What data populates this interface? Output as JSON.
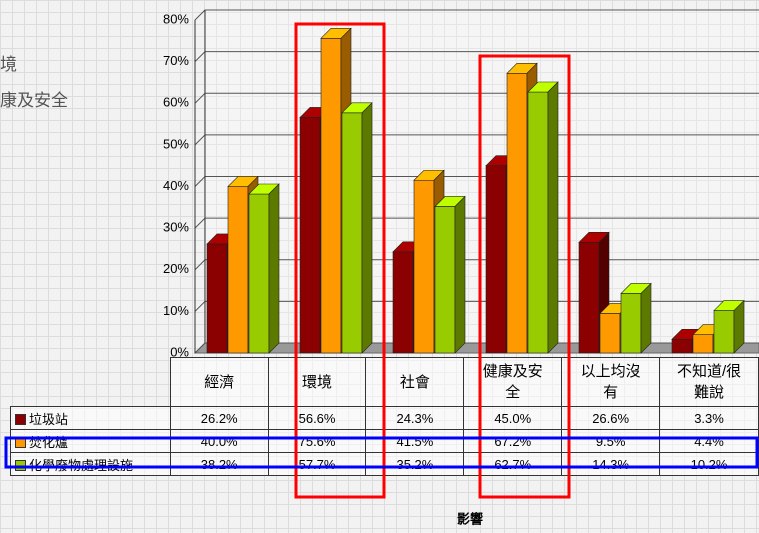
{
  "chart_data": {
    "type": "bar3d",
    "annotations": [
      "境",
      "康及安全"
    ],
    "x_label": "影響",
    "categories": [
      "經濟",
      "環境",
      "社會",
      "健康及安全",
      "以上均沒有",
      "不知道/很難說"
    ],
    "series": [
      {
        "name": "垃圾站",
        "color": "#8b0000",
        "values": [
          26.2,
          56.6,
          24.3,
          45.0,
          26.6,
          3.3
        ],
        "value_labels": [
          "26.2%",
          "56.6%",
          "24.3%",
          "45.0%",
          "26.6%",
          "3.3%"
        ]
      },
      {
        "name": "焚化爐",
        "color": "#ff9900",
        "values": [
          40.0,
          75.6,
          41.5,
          67.2,
          9.5,
          4.4
        ],
        "value_labels": [
          "40.0%",
          "75.6%",
          "41.5%",
          "67.2%",
          "9.5%",
          "4.4%"
        ]
      },
      {
        "name": "化學廢物處理設施",
        "color": "#99cc00",
        "values": [
          38.2,
          57.7,
          35.2,
          62.7,
          14.3,
          10.2
        ],
        "value_labels": [
          "38.2%",
          "57.7%",
          "35.2%",
          "62.7%",
          "14.3%",
          "10.2%"
        ]
      }
    ],
    "ylim": [
      0,
      80
    ],
    "yticks": [
      {
        "value": 0,
        "label": "0%"
      },
      {
        "value": 10,
        "label": "10%"
      },
      {
        "value": 20,
        "label": "20%"
      },
      {
        "value": 30,
        "label": "30%"
      },
      {
        "value": 40,
        "label": "40%"
      },
      {
        "value": 50,
        "label": "50%"
      },
      {
        "value": 60,
        "label": "60%"
      },
      {
        "value": 70,
        "label": "70%"
      },
      {
        "value": 80,
        "label": "80%"
      }
    ],
    "grid": true
  }
}
